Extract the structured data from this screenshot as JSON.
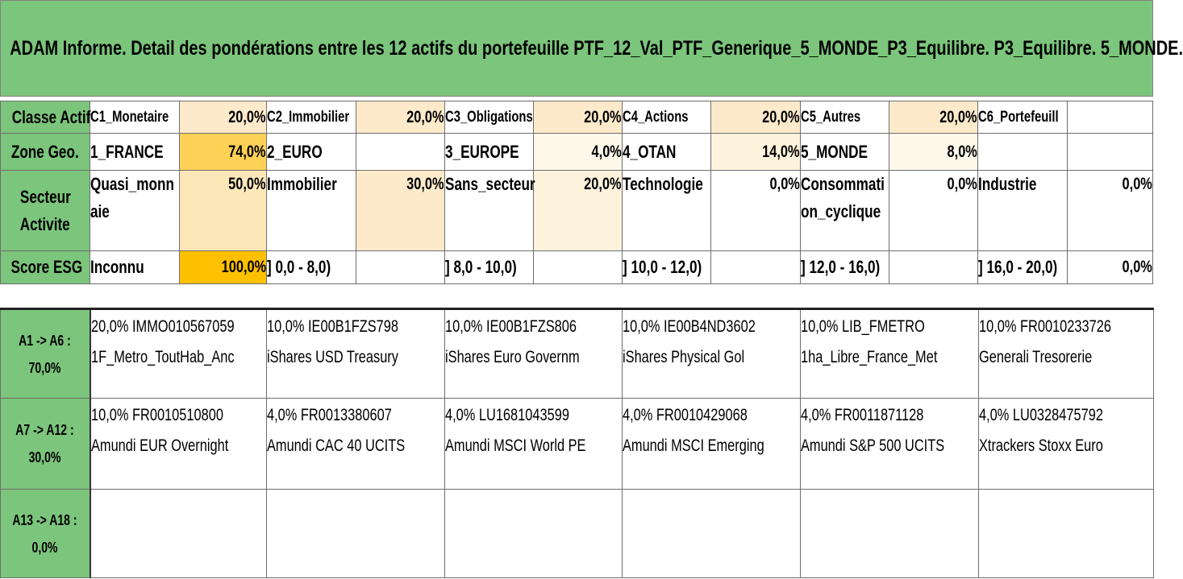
{
  "title": "ADAM Informe. Detail des pondérations entre les 12 actifs du portefeuille PTF_12_Val_PTF_Generique_5_MONDE_P3_Equilibre. P3_Equilibre. 5_MONDE.",
  "classe_actif": {
    "header": "Classe Actif",
    "cells": [
      {
        "label": "C1_Monetaire",
        "pct": "20,0%"
      },
      {
        "label": "C2_Immobilier",
        "pct": "20,0%"
      },
      {
        "label": "C3_Obligations",
        "pct": "20,0%"
      },
      {
        "label": "C4_Actions",
        "pct": "20,0%"
      },
      {
        "label": "C5_Autres",
        "pct": "20,0%"
      },
      {
        "label": "C6_Portefeuill",
        "pct": ""
      }
    ]
  },
  "zone_geo": {
    "header": "Zone Geo.",
    "cells": [
      {
        "label": "1_FRANCE",
        "pct": "74,0%"
      },
      {
        "label": "2_EURO",
        "pct": ""
      },
      {
        "label": "3_EUROPE",
        "pct": "4,0%"
      },
      {
        "label": "4_OTAN",
        "pct": "14,0%"
      },
      {
        "label": "5_MONDE",
        "pct": "8,0%"
      },
      {
        "label": "",
        "pct": ""
      }
    ]
  },
  "secteur": {
    "header_line1": "Secteur",
    "header_line2": "Activite",
    "cells": [
      {
        "line1": "Quasi_monn",
        "line2": "aie",
        "pct": "50,0%"
      },
      {
        "line1": "Immobilier",
        "line2": "",
        "pct": "30,0%"
      },
      {
        "line1": "Sans_secteur",
        "line2": "",
        "pct": "20,0%"
      },
      {
        "line1": "Technologie",
        "line2": "",
        "pct": "0,0%"
      },
      {
        "line1": "Consommati",
        "line2": "on_cyclique",
        "pct": "0,0%"
      },
      {
        "line1": "Industrie",
        "line2": "",
        "pct": "0,0%"
      }
    ]
  },
  "score_esg": {
    "header": "Score ESG",
    "cells": [
      {
        "label": "Inconnu",
        "pct": "100,0%"
      },
      {
        "label": "] 0,0 - 8,0)",
        "pct": ""
      },
      {
        "label": "] 8,0 - 10,0)",
        "pct": ""
      },
      {
        "label": "] 10,0 - 12,0)",
        "pct": ""
      },
      {
        "label": "] 12,0 - 16,0)",
        "pct": ""
      },
      {
        "label": "] 16,0 - 20,0)",
        "pct": "0,0%"
      }
    ]
  },
  "assets": [
    {
      "header_line1": "A1 -> A6 :",
      "header_line2": "70,0%",
      "items": [
        {
          "line1": "20,0% IMMO010567059",
          "line2": "1F_Metro_ToutHab_Anc"
        },
        {
          "line1": "10,0% IE00B1FZS798",
          "line2": "iShares USD Treasury"
        },
        {
          "line1": "10,0% IE00B1FZS806",
          "line2": "iShares Euro Governm"
        },
        {
          "line1": "10,0% IE00B4ND3602",
          "line2": "iShares Physical Gol"
        },
        {
          "line1": "10,0% LIB_FMETRO",
          "line2": "1ha_Libre_France_Met"
        },
        {
          "line1": "10,0% FR0010233726",
          "line2": "Generali Tresorerie"
        }
      ]
    },
    {
      "header_line1": "A7 -> A12 :",
      "header_line2": "30,0%",
      "items": [
        {
          "line1": "10,0% FR0010510800",
          "line2": "Amundi EUR Overnight"
        },
        {
          "line1": "4,0% FR0013380607",
          "line2": "Amundi CAC 40 UCITS"
        },
        {
          "line1": "4,0% LU1681043599",
          "line2": "Amundi MSCI World PE"
        },
        {
          "line1": "4,0% FR0010429068",
          "line2": "Amundi MSCI Emerging"
        },
        {
          "line1": "4,0% FR0011871128",
          "line2": "Amundi S&P 500 UCITS"
        },
        {
          "line1": "4,0% LU0328475792",
          "line2": "Xtrackers Stoxx Euro"
        }
      ]
    },
    {
      "header_line1": "A13 -> A18 :",
      "header_line2": "0,0%",
      "items": [
        {
          "line1": "",
          "line2": ""
        },
        {
          "line1": "",
          "line2": ""
        },
        {
          "line1": "",
          "line2": ""
        },
        {
          "line1": "",
          "line2": ""
        },
        {
          "line1": "",
          "line2": ""
        },
        {
          "line1": "",
          "line2": ""
        }
      ]
    }
  ]
}
